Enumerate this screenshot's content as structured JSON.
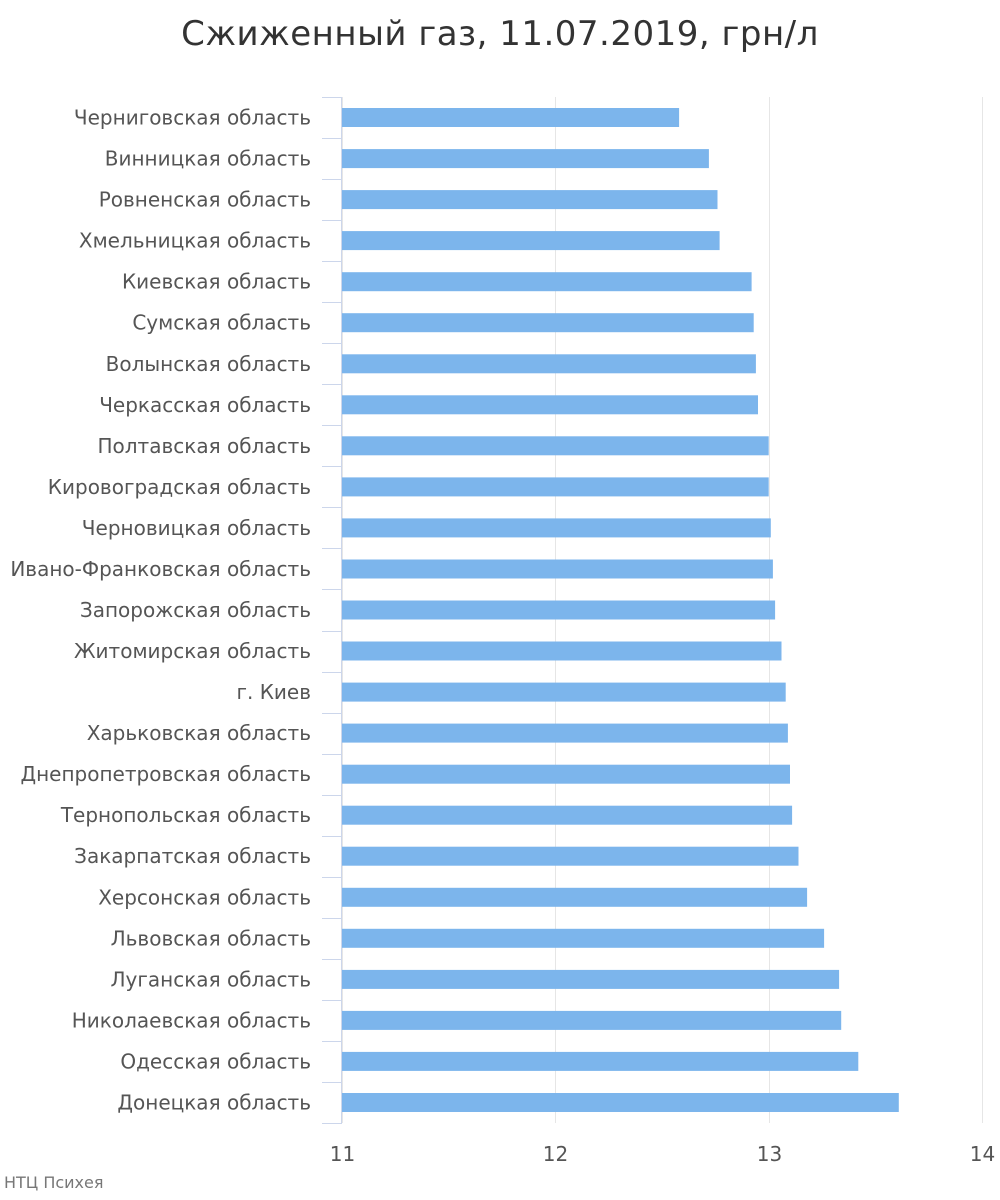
{
  "chart_data": {
    "type": "bar",
    "orientation": "horizontal",
    "title": "Сжиженный газ, 11.07.2019, грн/л",
    "xlabel": "",
    "ylabel": "",
    "xlim": [
      11,
      14
    ],
    "xticks": [
      11,
      12,
      13,
      14
    ],
    "grid": true,
    "legend": "none",
    "bar_color": "#7cb5ec",
    "categories": [
      "Черниговская область",
      "Винницкая область",
      "Ровненская область",
      "Хмельницкая область",
      "Киевская область",
      "Сумская область",
      "Волынская область",
      "Черкасская область",
      "Полтавская область",
      "Кировоградская область",
      "Черновицкая область",
      "Ивано-Франковская область",
      "Запорожская область",
      "Житомирская область",
      "г. Киев",
      "Харьковская область",
      "Днепропетровская область",
      "Тернопольская область",
      "Закарпатская область",
      "Херсонская область",
      "Львовская область",
      "Луганская область",
      "Николаевская область",
      "Одесская область",
      "Донецкая область"
    ],
    "values": [
      12.58,
      12.72,
      12.76,
      12.77,
      12.92,
      12.93,
      12.94,
      12.95,
      13.0,
      13.0,
      13.01,
      13.02,
      13.03,
      13.06,
      13.08,
      13.09,
      13.1,
      13.11,
      13.14,
      13.18,
      13.26,
      13.33,
      13.34,
      13.42,
      13.61
    ]
  },
  "credit": "НТЦ Психея"
}
